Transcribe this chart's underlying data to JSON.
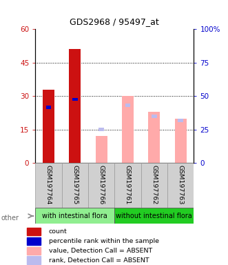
{
  "title": "GDS2968 / 95497_at",
  "samples": [
    "GSM197764",
    "GSM197765",
    "GSM197766",
    "GSM197761",
    "GSM197762",
    "GSM197763"
  ],
  "count_values": [
    33,
    51,
    null,
    null,
    null,
    null
  ],
  "percentile_values": [
    25,
    28.5,
    null,
    null,
    null,
    null
  ],
  "absent_value_values": [
    null,
    null,
    12,
    30,
    23,
    20
  ],
  "absent_rank_values": [
    null,
    null,
    15,
    26,
    21,
    19
  ],
  "bar_width": 0.45,
  "percentile_bar_width": 0.2,
  "left_ylim": [
    0,
    60
  ],
  "left_yticks": [
    0,
    15,
    30,
    45,
    60
  ],
  "left_yticklabels": [
    "0",
    "15",
    "30",
    "45",
    "60"
  ],
  "right_yticklabels": [
    "0",
    "25",
    "50",
    "75",
    "100%"
  ],
  "color_count": "#cc1111",
  "color_percentile": "#0000cc",
  "color_absent_value": "#ffaaaa",
  "color_absent_rank": "#bbbbee",
  "legend_items": [
    {
      "label": "count",
      "color": "#cc1111"
    },
    {
      "label": "percentile rank within the sample",
      "color": "#0000cc"
    },
    {
      "label": "value, Detection Call = ABSENT",
      "color": "#ffaaaa"
    },
    {
      "label": "rank, Detection Call = ABSENT",
      "color": "#bbbbee"
    }
  ],
  "other_label": "other",
  "group_label_with": "with intestinal flora",
  "group_label_without": "without intestinal flora",
  "group_color_with": "#90ee90",
  "group_color_without": "#22cc22",
  "sample_box_color": "#d0d0d0",
  "fig_width": 3.31,
  "fig_height": 3.84,
  "dpi": 100
}
